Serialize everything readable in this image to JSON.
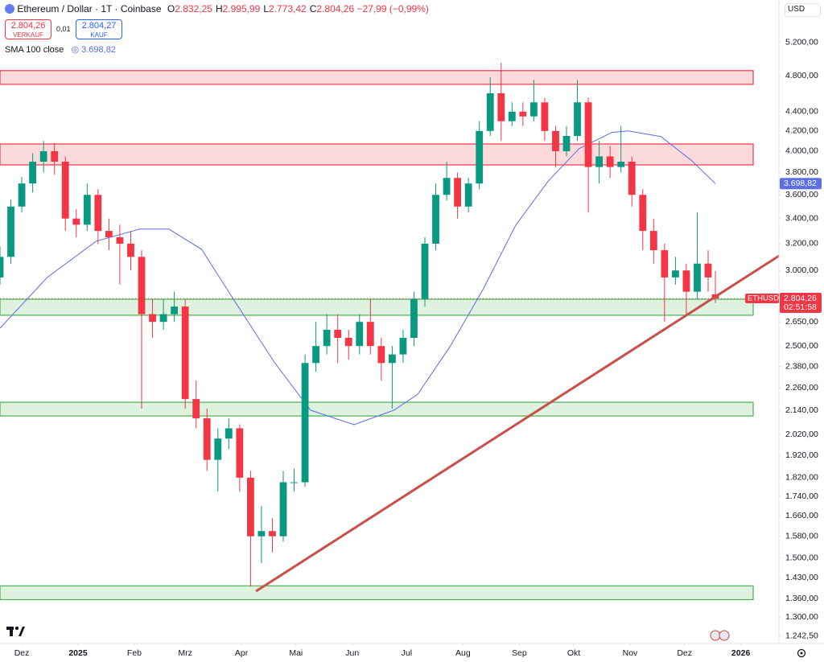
{
  "header": {
    "title": "Ethereum / Dollar · 1T · Coinbase",
    "fields": [
      {
        "key": "O",
        "value": "2.832,25"
      },
      {
        "key": "H",
        "value": "2.995,99"
      },
      {
        "key": "L",
        "value": "2.773,42"
      },
      {
        "key": "C",
        "value": "2.804,26"
      }
    ],
    "change": "−27,99 (−0,99%)",
    "sell": {
      "price": "2.804,26",
      "label": "VERKAUF"
    },
    "spread": "0,01",
    "buy": {
      "price": "2.804,27",
      "label": "KAUF"
    },
    "currency": "USD"
  },
  "chart_data": {
    "type": "candlestick",
    "title": "Ethereum / Dollar · 1T · Coinbase",
    "log_scale": true,
    "grid": false,
    "up_color": "#089981",
    "down_color": "#f23645",
    "x": [
      -12,
      -6,
      0,
      6,
      12,
      18,
      24,
      30,
      36,
      42,
      48,
      54,
      60,
      66,
      72,
      78,
      84,
      90,
      96,
      102,
      108,
      114,
      120,
      126,
      132,
      138,
      144,
      150,
      156,
      162,
      168,
      174,
      180,
      186,
      192,
      198,
      204,
      210,
      216,
      222,
      228,
      234,
      240,
      246,
      252,
      258,
      264,
      270,
      276,
      282,
      288,
      294,
      300,
      306,
      312,
      318,
      324,
      330,
      336,
      342,
      348,
      354,
      360,
      366,
      372,
      378,
      382
    ],
    "open": [
      2950,
      3100,
      3500,
      3700,
      3900,
      4000,
      3900,
      3400,
      3350,
      3600,
      3300,
      3250,
      3200,
      3100,
      2700,
      2650,
      2700,
      2750,
      2200,
      2100,
      1900,
      2000,
      2050,
      1820,
      1580,
      1600,
      1580,
      1800,
      1800,
      2400,
      2500,
      2600,
      2550,
      2500,
      2650,
      2500,
      2400,
      2450,
      2550,
      2800,
      3200,
      3600,
      3750,
      3500,
      3700,
      4200,
      4600,
      4300,
      4400,
      4350,
      4500,
      4200,
      4000,
      4150,
      4500,
      3850,
      3950,
      3850,
      3900,
      3600,
      3300,
      3150,
      2950,
      3000,
      2850,
      3050,
      2832.25
    ],
    "high": [
      3180,
      3560,
      3760,
      3980,
      4100,
      4080,
      3950,
      3480,
      3700,
      3650,
      3400,
      3350,
      3300,
      3150,
      2800,
      2800,
      2850,
      2800,
      2300,
      2150,
      2050,
      2100,
      2070,
      1850,
      1700,
      1650,
      1850,
      1860,
      2450,
      2650,
      2700,
      2700,
      2600,
      2700,
      2800,
      2550,
      2500,
      2600,
      2850,
      3250,
      3700,
      3900,
      3800,
      3750,
      4300,
      4780,
      4950,
      4500,
      4500,
      4750,
      4550,
      4250,
      4250,
      4750,
      4550,
      4100,
      4050,
      4250,
      3950,
      3650,
      3400,
      3200,
      3100,
      3050,
      3450,
      3150,
      2995.99
    ],
    "low": [
      2900,
      3050,
      3450,
      3620,
      3800,
      3780,
      3300,
      3250,
      3300,
      3200,
      3150,
      2900,
      3000,
      2150,
      2550,
      2600,
      2650,
      2150,
      2050,
      1850,
      1760,
      1950,
      1760,
      1400,
      1480,
      1520,
      1560,
      1760,
      1780,
      2350,
      2450,
      2400,
      2420,
      2450,
      2450,
      2300,
      2150,
      2400,
      2500,
      2750,
      3150,
      3550,
      3400,
      3450,
      3650,
      4150,
      4100,
      4250,
      4250,
      4300,
      4100,
      3850,
      3950,
      4100,
      3450,
      3700,
      3750,
      3800,
      3500,
      3150,
      3050,
      2650,
      2900,
      2700,
      2800,
      2850,
      2773.42
    ],
    "close": [
      3100,
      3500,
      3700,
      3900,
      4000,
      3900,
      3400,
      3350,
      3600,
      3300,
      3250,
      3200,
      3100,
      2700,
      2650,
      2700,
      2750,
      2200,
      2100,
      1900,
      2000,
      2050,
      1820,
      1580,
      1600,
      1580,
      1800,
      1800,
      2400,
      2500,
      2600,
      2550,
      2500,
      2650,
      2500,
      2400,
      2450,
      2550,
      2800,
      3200,
      3600,
      3750,
      3500,
      3700,
      4200,
      4600,
      4300,
      4400,
      4350,
      4500,
      4200,
      4000,
      4150,
      4500,
      3850,
      3950,
      3850,
      3900,
      3600,
      3300,
      3150,
      2950,
      3000,
      2850,
      3050,
      2950,
      2804.26
    ],
    "last_price": {
      "symbol": "ETHUSD",
      "label": "2.804,26",
      "countdown": "02:51:58"
    },
    "sma": {
      "name": "SMA 100 close",
      "color": "#5b6ee6",
      "x": [
        -12,
        14,
        41,
        65,
        81,
        99,
        116,
        139,
        159,
        183,
        205,
        218,
        236,
        254,
        272,
        290,
        307,
        325,
        334,
        352,
        369,
        382
      ],
      "values": [
        2610,
        2950,
        3220,
        3315,
        3315,
        3157,
        2810,
        2406,
        2142,
        2068,
        2142,
        2225,
        2500,
        2865,
        3345,
        3723,
        4025,
        4185,
        4200,
        4144,
        3909,
        3698.82
      ],
      "last_label": "3.698,82"
    },
    "zones": [
      {
        "range": [
          4700,
          4858
        ],
        "color": "#f23645"
      },
      {
        "range": [
          3870,
          4070
        ],
        "color": "#f23645"
      },
      {
        "range": [
          2693,
          2799
        ],
        "color": "#4caf50"
      },
      {
        "range": [
          2112,
          2183
        ],
        "color": "#4caf50"
      },
      {
        "range": [
          1356,
          1402
        ],
        "color": "#4caf50"
      }
    ],
    "trendline": {
      "x": [
        129,
        417
      ],
      "values": [
        1384,
        3107
      ],
      "color": "#c8504b"
    },
    "xlim": [
      -12,
      417
    ],
    "ylim": [
      1220,
      5760
    ],
    "xticks": [
      {
        "value": 0,
        "label": "Dez"
      },
      {
        "value": 31,
        "label": "2025"
      },
      {
        "value": 62,
        "label": "Feb"
      },
      {
        "value": 90,
        "label": "Mrz"
      },
      {
        "value": 121,
        "label": "Apr"
      },
      {
        "value": 151,
        "label": "Mai"
      },
      {
        "value": 182,
        "label": "Jun"
      },
      {
        "value": 212,
        "label": "Jul"
      },
      {
        "value": 243,
        "label": "Aug"
      },
      {
        "value": 274,
        "label": "Sep"
      },
      {
        "value": 304,
        "label": "Okt"
      },
      {
        "value": 335,
        "label": "Nov"
      },
      {
        "value": 365,
        "label": "Dez"
      },
      {
        "value": 396,
        "label": "2026"
      }
    ],
    "yticks": [
      {
        "value": 5200,
        "label": "5.200,00"
      },
      {
        "value": 4800,
        "label": "4.800,00"
      },
      {
        "value": 4400,
        "label": "4.400,00"
      },
      {
        "value": 4200,
        "label": "4.200,00"
      },
      {
        "value": 4000,
        "label": "4.000,00"
      },
      {
        "value": 3800,
        "label": "3.800,00"
      },
      {
        "value": 3600,
        "label": "3.600,00"
      },
      {
        "value": 3400,
        "label": "3.400,00"
      },
      {
        "value": 3200,
        "label": "3.200,00"
      },
      {
        "value": 3000,
        "label": "3.000,00"
      },
      {
        "value": 2650,
        "label": "2.650,00"
      },
      {
        "value": 2500,
        "label": "2.500,00"
      },
      {
        "value": 2380,
        "label": "2.380,00"
      },
      {
        "value": 2260,
        "label": "2.260,00"
      },
      {
        "value": 2140,
        "label": "2.140,00"
      },
      {
        "value": 2020,
        "label": "2.020,00"
      },
      {
        "value": 1920,
        "label": "1.920,00"
      },
      {
        "value": 1820,
        "label": "1.820,00"
      },
      {
        "value": 1740,
        "label": "1.740,00"
      },
      {
        "value": 1660,
        "label": "1.660,00"
      },
      {
        "value": 1580,
        "label": "1.580,00"
      },
      {
        "value": 1500,
        "label": "1.500,00"
      },
      {
        "value": 1430,
        "label": "1.430,00"
      },
      {
        "value": 1360,
        "label": "1.360,00"
      },
      {
        "value": 1300,
        "label": "1.300,00"
      },
      {
        "value": 1242.5,
        "label": "1.242,50"
      }
    ]
  }
}
